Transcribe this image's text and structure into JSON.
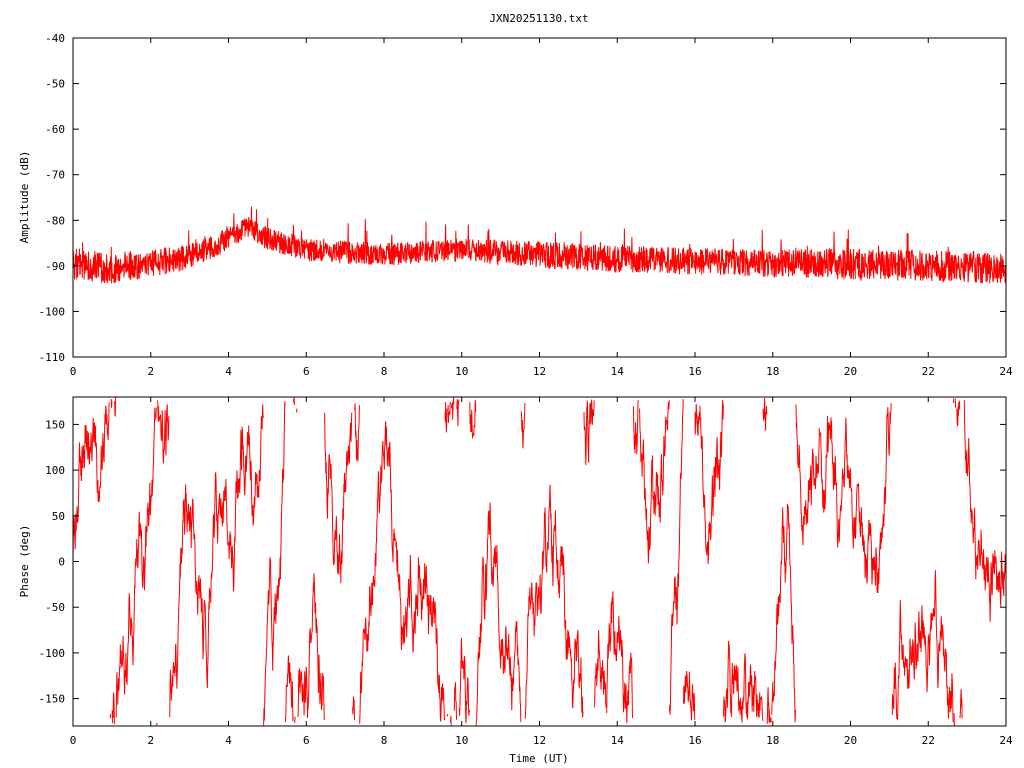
{
  "page_title": "JXN20251130.txt",
  "colors": {
    "series": "#ff0000",
    "axis": "#000000",
    "background": "#ffffff"
  },
  "chart_data": [
    {
      "type": "line",
      "title": "JXN20251130.txt",
      "xlabel": "",
      "ylabel": "Amplitude (dB)",
      "xlim": [
        0,
        24
      ],
      "ylim": [
        -110,
        -40
      ],
      "xticks": [
        0,
        2,
        4,
        6,
        8,
        10,
        12,
        14,
        16,
        18,
        20,
        22,
        24
      ],
      "yticks": [
        -110,
        -100,
        -90,
        -80,
        -70,
        -60,
        -50,
        -40
      ],
      "x_tick_labels": [
        "0",
        "2",
        "4",
        "6",
        "8",
        "10",
        "12",
        "14",
        "16",
        "18",
        "20",
        "22",
        "24"
      ],
      "y_tick_labels": [
        "-110",
        "-100",
        "-90",
        "-80",
        "-70",
        "-60",
        "-50",
        "-40"
      ],
      "grid": false,
      "series": [
        {
          "envelope": {
            "x": [
              0,
              1,
              2,
              3,
              4,
              4.5,
              5,
              6,
              8,
              10,
              12,
              14,
              16,
              18,
              20,
              22,
              24
            ],
            "center": [
              -89.5,
              -90.5,
              -89.5,
              -88,
              -84,
              -81.5,
              -84,
              -86.5,
              -87.5,
              -86.5,
              -87.5,
              -88.5,
              -89,
              -89.5,
              -89.5,
              -90,
              -90.5
            ],
            "spread": [
              3.5,
              3.5,
              3,
              3,
              2.5,
              2.5,
              2.5,
              2.5,
              2.5,
              2.5,
              3,
              3,
              3,
              3,
              3.5,
              3.5,
              3.5
            ]
          }
        }
      ]
    },
    {
      "type": "line",
      "title": "",
      "xlabel": "Time (UT)",
      "ylabel": "Phase (deg)",
      "xlim": [
        0,
        24
      ],
      "ylim": [
        -180,
        180
      ],
      "xticks": [
        0,
        2,
        4,
        6,
        8,
        10,
        12,
        14,
        16,
        18,
        20,
        22,
        24
      ],
      "yticks": [
        -150,
        -100,
        -50,
        0,
        50,
        100,
        150
      ],
      "x_tick_labels": [
        "0",
        "2",
        "4",
        "6",
        "8",
        "10",
        "12",
        "14",
        "16",
        "18",
        "20",
        "22",
        "24"
      ],
      "y_tick_labels": [
        "-150",
        "-100",
        "-50",
        "0",
        "50",
        "100",
        "150"
      ],
      "grid": false,
      "series": [
        {
          "wrap": [
            -180,
            180
          ],
          "drift_per_hour_deg": [
            [
              0,
              250
            ],
            [
              0.6,
              -80
            ],
            [
              1.2,
              260
            ],
            [
              2,
              -60
            ],
            [
              2.6,
              320
            ],
            [
              3.2,
              -120
            ],
            [
              4.3,
              90
            ],
            [
              5.2,
              -40
            ],
            [
              5.8,
              180
            ],
            [
              6.5,
              -20
            ],
            [
              7.3,
              280
            ],
            [
              8.2,
              -150
            ],
            [
              9.2,
              60
            ],
            [
              10.2,
              -30
            ],
            [
              11.2,
              220
            ],
            [
              12.5,
              -260
            ],
            [
              13.5,
              300
            ],
            [
              14.5,
              -200
            ],
            [
              15.5,
              320
            ],
            [
              16.5,
              -280
            ],
            [
              17.5,
              300
            ],
            [
              18.5,
              -260
            ],
            [
              19.5,
              240
            ],
            [
              20.5,
              -300
            ],
            [
              21.5,
              320
            ],
            [
              22.5,
              -280
            ],
            [
              23.5,
              300
            ]
          ],
          "noise_deg": 25
        }
      ]
    }
  ]
}
